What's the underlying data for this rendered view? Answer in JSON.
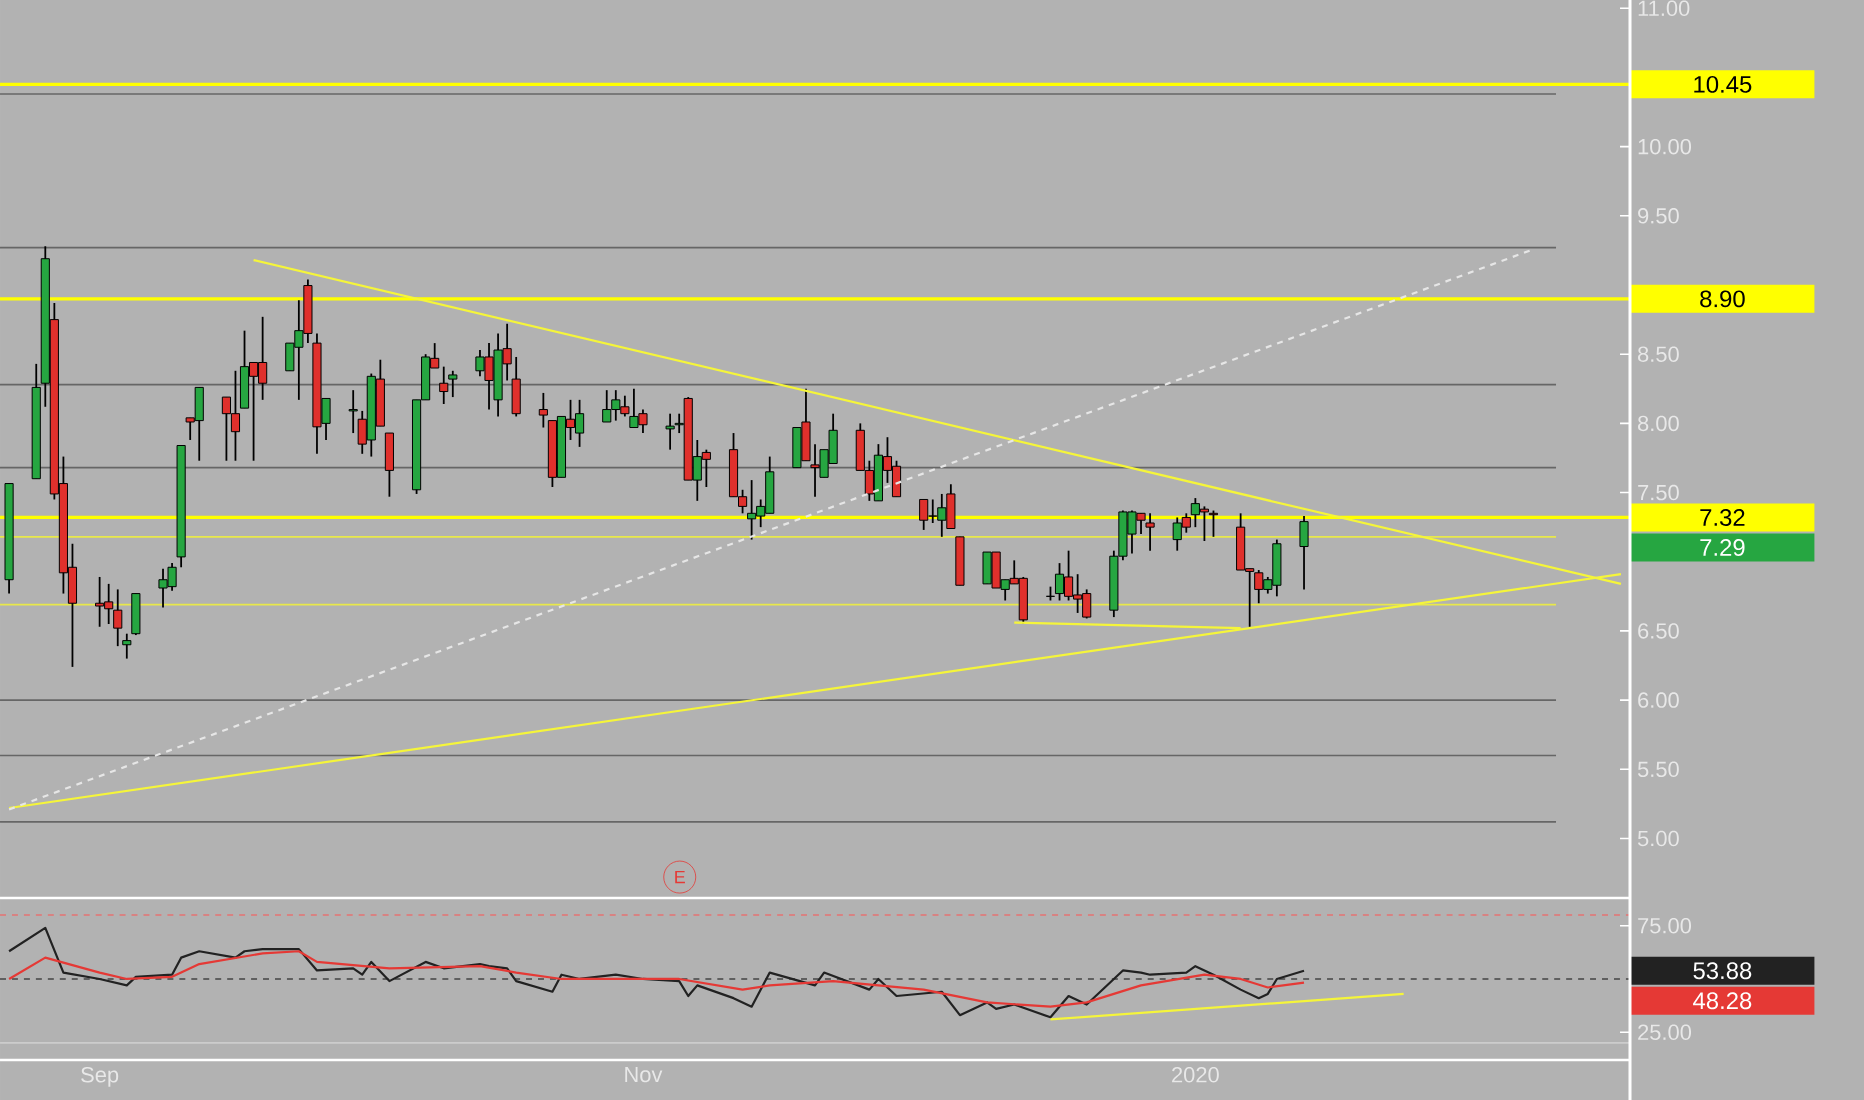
{
  "chart_data": [
    {
      "type": "candlestick",
      "x": [
        "2019-08-23",
        "2019-08-26",
        "2019-08-27",
        "2019-08-28",
        "2019-08-29",
        "2019-08-30",
        "2019-09-02",
        "2019-09-03",
        "2019-09-04",
        "2019-09-05",
        "2019-09-06",
        "2019-09-09",
        "2019-09-10",
        "2019-09-11",
        "2019-09-12",
        "2019-09-13",
        "2019-09-16",
        "2019-09-17",
        "2019-09-18",
        "2019-09-19",
        "2019-09-20",
        "2019-09-23",
        "2019-09-24",
        "2019-09-25",
        "2019-09-26",
        "2019-09-27",
        "2019-09-30",
        "2019-10-01",
        "2019-10-02",
        "2019-10-03",
        "2019-10-04",
        "2019-10-07",
        "2019-10-08",
        "2019-10-09",
        "2019-10-10",
        "2019-10-11",
        "2019-10-14",
        "2019-10-15",
        "2019-10-16",
        "2019-10-17",
        "2019-10-18",
        "2019-10-21",
        "2019-10-22",
        "2019-10-23",
        "2019-10-24",
        "2019-10-25",
        "2019-10-28",
        "2019-10-29",
        "2019-10-30",
        "2019-10-31",
        "2019-11-01",
        "2019-11-04",
        "2019-11-05",
        "2019-11-06",
        "2019-11-07",
        "2019-11-08",
        "2019-11-11",
        "2019-11-12",
        "2019-11-13",
        "2019-11-14",
        "2019-11-15",
        "2019-11-18",
        "2019-11-19",
        "2019-11-20",
        "2019-11-21",
        "2019-11-22",
        "2019-11-25",
        "2019-11-26",
        "2019-11-27",
        "2019-11-28",
        "2019-11-29",
        "2019-12-02",
        "2019-12-03",
        "2019-12-04",
        "2019-12-05",
        "2019-12-06",
        "2019-12-09",
        "2019-12-10",
        "2019-12-11",
        "2019-12-12",
        "2019-12-13",
        "2019-12-16",
        "2019-12-17",
        "2019-12-18",
        "2019-12-19",
        "2019-12-20",
        "2019-12-23",
        "2019-12-24",
        "2019-12-25",
        "2019-12-26",
        "2019-12-27",
        "2019-12-30",
        "2019-12-31",
        "2020-01-01",
        "2020-01-02",
        "2020-01-03",
        "2020-01-06",
        "2020-01-07",
        "2020-01-08",
        "2020-01-09",
        "2020-01-10",
        "2020-01-13"
      ],
      "ohlc": [
        [
          6.87,
          7.565,
          6.77,
          7.565
        ],
        [
          7.6,
          8.43,
          7.6,
          8.26
        ],
        [
          8.29,
          9.28,
          8.12,
          9.19
        ],
        [
          8.75,
          8.87,
          7.45,
          7.49
        ],
        [
          7.565,
          7.76,
          6.77,
          6.92
        ],
        [
          6.96,
          7.13,
          6.24,
          6.7
        ],
        [
          6.7,
          6.89,
          6.53,
          6.68
        ],
        [
          6.71,
          6.84,
          6.55,
          6.66
        ],
        [
          6.65,
          6.8,
          6.39,
          6.52
        ],
        [
          6.4,
          6.48,
          6.3,
          6.43
        ],
        [
          6.48,
          6.77,
          6.47,
          6.77
        ],
        [
          6.81,
          6.95,
          6.67,
          6.87
        ],
        [
          6.82,
          6.99,
          6.79,
          6.96
        ],
        [
          7.035,
          7.84,
          6.96,
          7.84
        ],
        [
          8.04,
          8.04,
          7.88,
          8.01
        ],
        [
          8.02,
          8.26,
          7.73,
          8.26
        ],
        [
          8.19,
          8.19,
          7.73,
          8.07
        ],
        [
          8.07,
          8.38,
          7.73,
          7.94
        ],
        [
          8.11,
          8.67,
          8.11,
          8.41
        ],
        [
          8.44,
          8.44,
          7.73,
          8.34
        ],
        [
          8.44,
          8.77,
          8.17,
          8.29
        ],
        [
          8.38,
          8.58,
          8.38,
          8.58
        ],
        [
          8.55,
          8.89,
          8.17,
          8.67
        ],
        [
          8.996,
          9.04,
          8.58,
          8.65
        ],
        [
          8.58,
          8.65,
          7.78,
          7.975
        ],
        [
          8.0,
          8.18,
          7.88,
          8.18
        ],
        [
          8.09,
          8.24,
          7.93,
          8.1
        ],
        [
          8.03,
          8.09,
          7.78,
          7.85
        ],
        [
          7.88,
          8.36,
          7.76,
          8.34
        ],
        [
          8.32,
          8.46,
          7.98,
          7.98
        ],
        [
          7.93,
          7.93,
          7.47,
          7.66
        ],
        [
          7.52,
          8.17,
          7.49,
          8.17
        ],
        [
          8.17,
          8.5,
          8.17,
          8.48
        ],
        [
          8.47,
          8.58,
          8.4,
          8.4
        ],
        [
          8.29,
          8.41,
          8.14,
          8.23
        ],
        [
          8.32,
          8.38,
          8.19,
          8.35
        ],
        [
          8.38,
          8.53,
          8.34,
          8.48
        ],
        [
          8.48,
          8.58,
          8.1,
          8.31
        ],
        [
          8.17,
          8.65,
          8.05,
          8.53
        ],
        [
          8.54,
          8.72,
          8.31,
          8.43
        ],
        [
          8.32,
          8.48,
          8.05,
          8.07
        ],
        [
          8.1,
          8.22,
          7.97,
          8.06
        ],
        [
          8.02,
          8.02,
          7.54,
          7.61
        ],
        [
          7.61,
          8.05,
          7.61,
          8.05
        ],
        [
          8.03,
          8.17,
          7.88,
          7.97
        ],
        [
          7.93,
          8.17,
          7.83,
          8.07
        ],
        [
          8.01,
          8.24,
          8.01,
          8.1
        ],
        [
          8.1,
          8.24,
          8.02,
          8.17
        ],
        [
          8.12,
          8.2,
          8.05,
          8.07
        ],
        [
          7.97,
          8.25,
          7.97,
          8.05
        ],
        [
          8.07,
          8.1,
          7.93,
          7.99
        ],
        [
          7.96,
          8.07,
          7.81,
          7.98
        ],
        [
          7.99,
          8.07,
          7.93,
          8.0
        ],
        [
          8.18,
          8.19,
          7.59,
          7.59
        ],
        [
          7.59,
          7.88,
          7.44,
          7.76
        ],
        [
          7.79,
          7.81,
          7.54,
          7.74
        ],
        [
          7.81,
          7.93,
          7.47,
          7.47
        ],
        [
          7.47,
          7.52,
          7.35,
          7.4
        ],
        [
          7.31,
          7.59,
          7.16,
          7.35
        ],
        [
          7.33,
          7.45,
          7.25,
          7.4
        ],
        [
          7.35,
          7.76,
          7.35,
          7.65
        ],
        [
          7.68,
          7.97,
          7.68,
          7.97
        ],
        [
          8.01,
          8.25,
          7.73,
          7.73
        ],
        [
          7.7,
          7.85,
          7.47,
          7.68
        ],
        [
          7.61,
          7.81,
          7.61,
          7.81
        ],
        [
          7.71,
          8.07,
          7.71,
          7.95
        ],
        [
          7.95,
          8.0,
          7.66,
          7.66
        ],
        [
          7.66,
          7.73,
          7.44,
          7.49
        ],
        [
          7.44,
          7.85,
          7.44,
          7.77
        ],
        [
          7.76,
          7.9,
          7.57,
          7.66
        ],
        [
          7.69,
          7.73,
          7.47,
          7.47
        ],
        [
          7.45,
          7.45,
          7.23,
          7.3
        ],
        [
          7.33,
          7.45,
          7.28,
          7.33
        ],
        [
          7.3,
          7.49,
          7.18,
          7.39
        ],
        [
          7.49,
          7.56,
          7.24,
          7.24
        ],
        [
          7.18,
          7.18,
          6.83,
          6.83
        ],
        [
          6.84,
          7.07,
          6.84,
          7.07
        ],
        [
          7.07,
          7.07,
          6.81,
          6.81
        ],
        [
          6.8,
          6.87,
          6.72,
          6.87
        ],
        [
          6.88,
          7.01,
          6.84,
          6.84
        ],
        [
          6.88,
          6.89,
          6.55,
          6.58
        ],
        [
          6.75,
          6.82,
          6.72,
          6.75
        ],
        [
          6.77,
          6.99,
          6.72,
          6.91
        ],
        [
          6.89,
          7.08,
          6.72,
          6.75
        ],
        [
          6.76,
          6.91,
          6.63,
          6.73
        ],
        [
          6.77,
          6.8,
          6.59,
          6.6
        ],
        [
          6.65,
          7.08,
          6.6,
          7.04
        ],
        [
          7.04,
          7.37,
          7.01,
          7.36
        ],
        [
          7.2,
          7.37,
          7.06,
          7.36
        ],
        [
          7.35,
          7.35,
          7.2,
          7.3
        ],
        [
          7.28,
          7.35,
          7.08,
          7.25
        ],
        [
          7.16,
          7.32,
          7.08,
          7.28
        ],
        [
          7.32,
          7.35,
          7.21,
          7.25
        ],
        [
          7.34,
          7.46,
          7.25,
          7.42
        ],
        [
          7.38,
          7.4,
          7.15,
          7.36
        ],
        [
          7.35,
          7.37,
          7.18,
          7.34
        ],
        [
          7.25,
          7.35,
          6.94,
          6.94
        ],
        [
          6.95,
          6.95,
          6.53,
          6.93
        ],
        [
          6.92,
          6.94,
          6.7,
          6.8
        ],
        [
          6.8,
          6.89,
          6.77,
          6.87
        ],
        [
          6.83,
          7.16,
          6.75,
          7.13
        ],
        [
          7.11,
          7.33,
          6.8,
          7.29
        ]
      ],
      "series": [
        {
          "type": "line",
          "color": "#f5f53a",
          "x": [
            "2019-09-19",
            "2020-02-17"
          ],
          "values": [
            9.18,
            6.84
          ]
        },
        {
          "type": "line",
          "color": "#f5f53a",
          "x": [
            "2019-08-23",
            "2020-02-17"
          ],
          "values": [
            5.22,
            6.91
          ]
        },
        {
          "type": "line",
          "color": "#e6e6e6",
          "line_style": "dashed",
          "x": [
            "2019-08-23",
            "2020-02-07"
          ],
          "values": [
            5.21,
            9.25
          ]
        },
        {
          "type": "line",
          "color": "#f5f53a",
          "x": [
            "2019-12-12",
            "2020-01-06"
          ],
          "values": [
            6.56,
            6.52
          ]
        }
      ],
      "ref_lines": [
        {
          "axis": "y",
          "value": 10.45,
          "label": "10.45",
          "color": "#ffff00"
        },
        {
          "axis": "y",
          "value": 8.9,
          "label": "8.90",
          "color": "#ffff00"
        },
        {
          "axis": "y",
          "value": 7.32,
          "label": "7.32",
          "color": "#ffff00"
        },
        {
          "axis": "y",
          "value": 7.18,
          "color": "#e8e84a"
        },
        {
          "axis": "y",
          "value": 6.69,
          "color": "#e8e84a"
        },
        {
          "axis": "y",
          "value": 10.38,
          "color": "#666666"
        },
        {
          "axis": "y",
          "value": 9.27,
          "color": "#666666"
        },
        {
          "axis": "y",
          "value": 8.28,
          "color": "#666666"
        },
        {
          "axis": "y",
          "value": 7.68,
          "color": "#666666"
        },
        {
          "axis": "y",
          "value": 6.0,
          "color": "#666666"
        },
        {
          "axis": "y",
          "value": 5.6,
          "color": "#666666"
        },
        {
          "axis": "y",
          "value": 5.12,
          "color": "#666666"
        }
      ],
      "annotations": [
        "7.29",
        "E"
      ],
      "xlim": [
        "2019-08-22",
        "2020-02-18"
      ],
      "ylim": [
        4.57,
        11.06
      ],
      "yticks": [
        {
          "value": 5,
          "label": "5.00"
        },
        {
          "value": 5.5,
          "label": "5.50"
        },
        {
          "value": 6,
          "label": "6.00"
        },
        {
          "value": 6.5,
          "label": "6.50"
        },
        {
          "value": 7.5,
          "label": "7.50"
        },
        {
          "value": 8,
          "label": "8.00"
        },
        {
          "value": 8.5,
          "label": "8.50"
        },
        {
          "value": 9.5,
          "label": "9.50"
        },
        {
          "value": 10,
          "label": "10.00"
        },
        {
          "value": 11,
          "label": "11.00"
        }
      ],
      "tick_labels": "y"
    },
    {
      "type": "line",
      "series": [
        {
          "color": "#222222",
          "x": [
            "2019-08-23",
            "2019-08-27",
            "2019-08-29",
            "2019-09-02",
            "2019-09-05",
            "2019-09-06",
            "2019-09-10",
            "2019-09-11",
            "2019-09-13",
            "2019-09-17",
            "2019-09-18",
            "2019-09-20",
            "2019-09-24",
            "2019-09-26",
            "2019-09-30",
            "2019-10-01",
            "2019-10-02",
            "2019-10-04",
            "2019-10-08",
            "2019-10-10",
            "2019-10-14",
            "2019-10-15",
            "2019-10-17",
            "2019-10-18",
            "2019-10-22",
            "2019-10-23",
            "2019-10-25",
            "2019-10-29",
            "2019-11-01",
            "2019-11-05",
            "2019-11-06",
            "2019-11-07",
            "2019-11-11",
            "2019-11-13",
            "2019-11-15",
            "2019-11-20",
            "2019-11-21",
            "2019-11-26",
            "2019-11-27",
            "2019-11-29",
            "2019-12-04",
            "2019-12-06",
            "2019-12-09",
            "2019-12-10",
            "2019-12-12",
            "2019-12-16",
            "2019-12-18",
            "2019-12-20",
            "2019-12-24",
            "2019-12-26",
            "2019-12-27",
            "2019-12-31",
            "2020-01-01",
            "2020-01-03",
            "2020-01-06",
            "2020-01-08",
            "2020-01-09",
            "2020-01-10",
            "2020-01-13"
          ],
          "values": [
            63,
            74,
            53,
            50,
            47,
            51,
            52,
            60,
            63,
            60,
            63,
            64,
            64,
            54,
            55,
            52,
            58,
            49,
            58,
            55,
            57,
            56,
            55,
            49,
            44,
            52,
            50,
            52,
            50,
            49,
            42,
            47,
            41,
            37,
            53,
            47,
            53,
            45,
            50,
            42,
            44,
            33,
            39,
            36,
            38,
            32,
            42,
            38,
            54,
            53,
            52,
            53,
            56,
            52,
            45,
            41,
            43,
            50,
            53.88
          ]
        },
        {
          "color": "#e53935",
          "x": [
            "2019-08-23",
            "2019-08-27",
            "2019-09-02",
            "2019-09-05",
            "2019-09-10",
            "2019-09-13",
            "2019-09-20",
            "2019-09-24",
            "2019-09-26",
            "2019-10-04",
            "2019-10-14",
            "2019-10-18",
            "2019-10-23",
            "2019-11-05",
            "2019-11-12",
            "2019-11-15",
            "2019-11-22",
            "2019-12-02",
            "2019-12-09",
            "2019-12-16",
            "2019-12-20",
            "2019-12-26",
            "2020-01-02",
            "2020-01-06",
            "2020-01-09",
            "2020-01-13"
          ],
          "values": [
            50,
            60,
            53,
            50,
            51,
            57,
            62,
            63,
            58,
            55,
            56,
            53,
            50,
            50,
            45,
            47,
            49,
            45,
            39,
            37,
            39,
            47,
            52,
            50,
            46,
            48.28
          ]
        },
        {
          "color": "#f5f53a",
          "x": [
            "2019-12-16",
            "2020-01-24"
          ],
          "values": [
            31,
            43
          ]
        }
      ],
      "ref_lines": [
        {
          "axis": "y",
          "value": 80,
          "color": "#e57373",
          "line_style": "dashed"
        },
        {
          "axis": "y",
          "value": 50,
          "color": "#444444",
          "line_style": "dashed"
        },
        {
          "axis": "y",
          "value": 20,
          "color": "#cccccc"
        }
      ],
      "annotations": [
        "53.88",
        "48.28"
      ],
      "xlim": [
        "2019-08-22",
        "2020-02-18"
      ],
      "xticks": [
        {
          "value": "2019-09-02",
          "label": "Sep"
        },
        {
          "value": "2019-11-01",
          "label": "Nov"
        },
        {
          "value": "2020-01-01",
          "label": "2020"
        }
      ],
      "ylim": [
        12,
        88
      ],
      "yticks": [
        {
          "value": 25,
          "label": "25.00"
        },
        {
          "value": 75,
          "label": "75.00"
        }
      ]
    }
  ]
}
